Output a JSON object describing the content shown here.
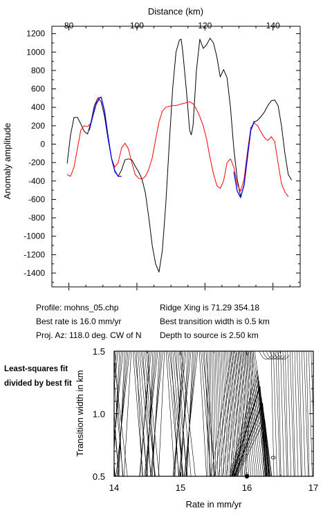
{
  "profile_info": {
    "profile": "Profile: mohns_05.chp",
    "best_rate": "Best rate is 16.0 mm/yr",
    "proj_az": "Proj. Az: 118.0 deg. CW of N",
    "ridge_xing": "Ridge Xing is 71.29 354.18",
    "best_width": "Best transition width is 0.5 km",
    "depth": "Depth to source is   2.50 km"
  },
  "side_note": "Least-squares fit divided by best fit",
  "colors": {
    "observed": "#000000",
    "model": "#ff0000",
    "fit": "#0000ff"
  },
  "chart_data": [
    {
      "type": "line",
      "xlabel": "Distance (km)",
      "ylabel": "Anomaly amplitude",
      "xlim": [
        75,
        148
      ],
      "ylim": [
        -1550,
        1280
      ],
      "x_ticks": [
        80,
        100,
        120,
        140
      ],
      "y_ticks": [
        -1400,
        -1200,
        -1000,
        -800,
        -600,
        -400,
        -200,
        0,
        200,
        400,
        600,
        800,
        1000,
        1200
      ],
      "grid": false,
      "series": [
        {
          "color": "#000000",
          "x": [
            79.5,
            80.5,
            81.5,
            82.5,
            83.5,
            84.5,
            85.5,
            86.5,
            87.5,
            88.5,
            89.5,
            90.5,
            91.5,
            92.5,
            93.5,
            94.5,
            95.5,
            96.5,
            97.5,
            98.5,
            99.5,
            100.5,
            101.5,
            102.5,
            103.5,
            104.5,
            105.5,
            106.5,
            107.5,
            108.5,
            109.5,
            110.5,
            111.5,
            112.5,
            113,
            113.5,
            114.5,
            115.5,
            116,
            116.5,
            117.5,
            118.5,
            119.5,
            120.5,
            121.5,
            122.5,
            123.5,
            124.5,
            125.5,
            126.5,
            127.5,
            128.5,
            129.5,
            130.5,
            131.5,
            132.5,
            133.5,
            134.5,
            135.5,
            136.5,
            137.5,
            138.5,
            139.5,
            140.5,
            141.5,
            142.5,
            143.5,
            144.5,
            145.5
          ],
          "y": [
            -210,
            100,
            290,
            290,
            220,
            140,
            110,
            240,
            420,
            500,
            460,
            300,
            60,
            -150,
            -300,
            -350,
            -280,
            -170,
            -160,
            -170,
            -240,
            -300,
            -380,
            -530,
            -800,
            -1100,
            -1300,
            -1390,
            -1150,
            -650,
            0,
            600,
            1000,
            1130,
            1140,
            1000,
            600,
            150,
            100,
            200,
            800,
            1140,
            1040,
            1080,
            1150,
            1100,
            950,
            730,
            810,
            720,
            400,
            -50,
            -380,
            -570,
            -450,
            -150,
            150,
            240,
            260,
            300,
            350,
            420,
            470,
            480,
            420,
            200,
            -100,
            -330,
            -390
          ]
        },
        {
          "color": "#ff0000",
          "x": [
            79.5,
            80.5,
            81.5,
            82.5,
            83.5,
            84.5,
            85.5,
            86.5,
            87.5,
            88.5,
            89.5,
            90.5,
            91.5,
            92.5,
            93.5,
            94.5,
            95.5,
            96.5,
            97.5,
            98.5,
            99.5,
            100.5,
            101.5,
            102.5,
            103.5,
            104.5,
            105.5,
            106.5,
            107.5,
            108.5,
            109.5,
            110.5,
            111.5,
            112.5,
            113.5,
            114.5,
            115.5,
            116.5,
            117.5,
            118.5,
            119.5,
            120.5,
            121.5,
            122.5,
            123.5,
            124.5,
            125.5,
            126.5,
            127.5,
            128.5,
            129.5,
            130.5,
            131.5,
            132.5,
            133.5,
            134.5,
            135.5,
            136.5,
            137.5,
            138.5,
            139.5,
            140.5,
            141.5,
            142.5,
            143.5,
            144.5
          ],
          "y": [
            -330,
            -350,
            -250,
            -50,
            150,
            200,
            190,
            230,
            380,
            500,
            510,
            350,
            100,
            -150,
            -250,
            -200,
            -40,
            10,
            -50,
            -200,
            -330,
            -370,
            -380,
            -350,
            -270,
            -150,
            50,
            240,
            360,
            400,
            410,
            420,
            420,
            430,
            440,
            450,
            460,
            440,
            380,
            300,
            200,
            50,
            -150,
            -320,
            -450,
            -480,
            -400,
            -200,
            -160,
            -250,
            -440,
            -510,
            -380,
            -80,
            180,
            230,
            200,
            130,
            70,
            40,
            80,
            30,
            -200,
            -430,
            -520,
            -570
          ]
        },
        {
          "color": "#0000ff",
          "x": [
            86,
            87,
            88,
            89,
            89.5,
            90.5,
            91.5,
            92.5,
            93.5,
            94.5,
            95.5
          ],
          "y": [
            150,
            300,
            430,
            500,
            510,
            360,
            90,
            -150,
            -290,
            -350,
            -350
          ]
        },
        {
          "color": "#0000ff",
          "x": [
            128.5,
            129.5,
            130.5,
            131.5,
            132.5,
            133.5,
            134.5
          ],
          "y": [
            -300,
            -510,
            -580,
            -440,
            -130,
            160,
            250
          ]
        }
      ]
    },
    {
      "type": "heatmap",
      "xlabel": "Rate in mm/yr",
      "ylabel": "Transition width in km",
      "xlim": [
        14,
        17
      ],
      "ylim": [
        0.5,
        1.5
      ],
      "x_ticks": [
        14,
        15,
        16,
        17
      ],
      "y_ticks": [
        0.5,
        1.0,
        1.5
      ],
      "best_point": {
        "x": 16.0,
        "y": 0.5
      }
    }
  ]
}
